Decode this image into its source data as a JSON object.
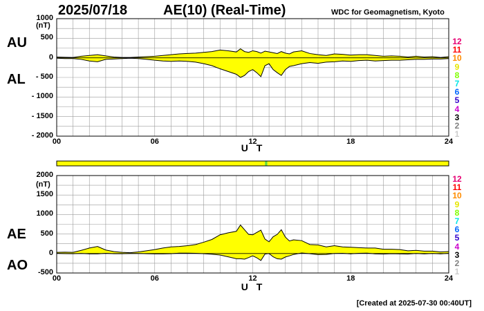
{
  "header": {
    "date": "2025/07/18",
    "title": "AE(10) (Real-Time)",
    "source": "WDC for Geomagnetism, Kyoto"
  },
  "footer": {
    "created": "[Created at 2025-07-30 00:40UT]"
  },
  "legend_levels": [
    "12",
    "11",
    "10",
    "9",
    "8",
    "7",
    "6",
    "5",
    "4",
    "3",
    "2",
    "1"
  ],
  "legend_colors": [
    "#e60073",
    "#ff0000",
    "#ff8c00",
    "#e6e600",
    "#80ff00",
    "#00e6e6",
    "#0066ff",
    "#3300cc",
    "#cc00cc",
    "#000000",
    "#808080",
    "#cccccc"
  ],
  "colors": {
    "fill": "#ffff00",
    "bar": "#ffff00",
    "bar_green": "#66dd33"
  },
  "chart_data": [
    {
      "type": "area",
      "panel": "top",
      "unit_label": "(nT)",
      "upper_series_label": "AU",
      "lower_series_label": "AL",
      "xlabel": "U T",
      "xlim": [
        0,
        24
      ],
      "ylim": [
        -2000,
        1000
      ],
      "yticks": [
        "1000",
        "500",
        "0",
        "- 500",
        "- 1000",
        "- 1500",
        "- 2000"
      ],
      "ytick_values": [
        1000,
        500,
        0,
        -500,
        -1000,
        -1500,
        -2000
      ],
      "xticks": [
        "00",
        "06",
        "12",
        "18",
        "24"
      ],
      "xtick_values": [
        0,
        6,
        12,
        18,
        24
      ],
      "grid": true,
      "x": [
        0,
        0.5,
        1,
        1.5,
        2,
        2.5,
        3,
        3.5,
        4,
        4.5,
        5,
        5.5,
        6,
        6.5,
        7,
        7.5,
        8,
        8.5,
        9,
        9.5,
        10,
        10.5,
        11,
        11.25,
        11.5,
        11.75,
        12,
        12.25,
        12.5,
        12.75,
        13,
        13.25,
        13.5,
        13.75,
        14,
        14.25,
        14.5,
        15,
        15.5,
        16,
        16.5,
        17,
        17.5,
        18,
        18.5,
        19,
        19.5,
        20,
        20.5,
        21,
        21.5,
        22,
        22.5,
        23,
        23.5,
        24
      ],
      "upper": [
        20,
        15,
        10,
        40,
        60,
        80,
        50,
        20,
        10,
        10,
        20,
        30,
        40,
        60,
        80,
        100,
        110,
        120,
        140,
        160,
        200,
        180,
        150,
        230,
        160,
        140,
        180,
        160,
        120,
        170,
        150,
        130,
        110,
        160,
        120,
        100,
        150,
        180,
        110,
        80,
        60,
        100,
        90,
        70,
        80,
        80,
        60,
        40,
        50,
        40,
        20,
        40,
        20,
        30,
        10,
        30
      ],
      "lower": [
        -10,
        -20,
        -20,
        -40,
        -80,
        -100,
        -40,
        -30,
        -20,
        -10,
        -20,
        -40,
        -60,
        -80,
        -90,
        -80,
        -90,
        -110,
        -150,
        -200,
        -280,
        -350,
        -420,
        -500,
        -450,
        -350,
        -300,
        -380,
        -480,
        -200,
        -150,
        -300,
        -380,
        -450,
        -300,
        -220,
        -200,
        -150,
        -120,
        -140,
        -110,
        -100,
        -80,
        -90,
        -70,
        -60,
        -80,
        -70,
        -60,
        -60,
        -50,
        -40,
        -40,
        -30,
        -30,
        -20
      ]
    },
    {
      "type": "area",
      "panel": "bottom",
      "unit_label": "(nT)",
      "upper_series_label": "AE",
      "lower_series_label": "AO",
      "xlabel": "U T",
      "xlim": [
        0,
        24
      ],
      "ylim": [
        -500,
        2000
      ],
      "yticks": [
        "2000",
        "1500",
        "1000",
        "500",
        "0",
        "-500"
      ],
      "ytick_values": [
        2000,
        1500,
        1000,
        500,
        0,
        -500
      ],
      "xticks": [
        "00",
        "06",
        "12",
        "18",
        "24"
      ],
      "xtick_values": [
        0,
        6,
        12,
        18,
        24
      ],
      "grid": true,
      "x": [
        0,
        0.5,
        1,
        1.5,
        2,
        2.5,
        3,
        3.5,
        4,
        4.5,
        5,
        5.5,
        6,
        6.5,
        7,
        7.5,
        8,
        8.5,
        9,
        9.5,
        10,
        10.5,
        11,
        11.25,
        11.5,
        11.75,
        12,
        12.25,
        12.5,
        12.75,
        13,
        13.25,
        13.5,
        13.75,
        14,
        14.25,
        14.5,
        15,
        15.5,
        16,
        16.5,
        17,
        17.5,
        18,
        18.5,
        19,
        19.5,
        20,
        20.5,
        21,
        21.5,
        22,
        22.5,
        23,
        23.5,
        24
      ],
      "upper": [
        30,
        35,
        30,
        80,
        140,
        180,
        90,
        50,
        30,
        20,
        40,
        70,
        100,
        140,
        170,
        180,
        200,
        230,
        290,
        360,
        480,
        530,
        570,
        730,
        610,
        490,
        480,
        540,
        600,
        370,
        300,
        430,
        490,
        610,
        420,
        320,
        350,
        330,
        230,
        220,
        170,
        200,
        170,
        160,
        150,
        140,
        140,
        110,
        110,
        100,
        70,
        80,
        60,
        60,
        40,
        50
      ],
      "ao": [
        5,
        -3,
        -5,
        0,
        -10,
        -10,
        5,
        -5,
        -5,
        0,
        0,
        -5,
        -10,
        -10,
        -5,
        10,
        10,
        5,
        -5,
        -20,
        -40,
        -85,
        -135,
        -135,
        -145,
        -105,
        -60,
        -110,
        -180,
        -15,
        0,
        -85,
        -135,
        -145,
        -90,
        -60,
        -25,
        15,
        -5,
        -30,
        -25,
        0,
        5,
        -10,
        5,
        10,
        -10,
        -15,
        -5,
        -10,
        -15,
        0,
        -10,
        0,
        -10,
        5
      ]
    }
  ],
  "color_bar": {
    "segments": [
      {
        "from": 0,
        "to": 12.75,
        "color": "#ffff00"
      },
      {
        "from": 12.75,
        "to": 12.9,
        "color": "#66dd33"
      },
      {
        "from": 12.9,
        "to": 24,
        "color": "#ffff00"
      }
    ]
  }
}
